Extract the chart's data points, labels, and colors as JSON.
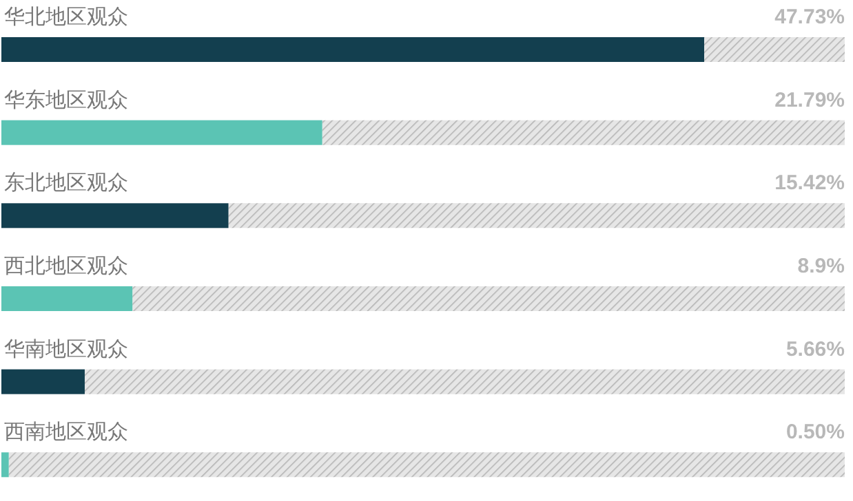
{
  "chart_data": {
    "type": "bar",
    "orientation": "horizontal",
    "categories": [
      "华北地区观众",
      "华东地区观众",
      "东北地区观众",
      "西北地区观众",
      "华南地区观众",
      "西南地区观众"
    ],
    "values": [
      47.73,
      21.79,
      15.42,
      8.9,
      5.66,
      0.5
    ],
    "value_labels": [
      "47.73%",
      "21.79%",
      "15.42%",
      "8.9%",
      "5.66%",
      "0.50%"
    ],
    "colors": [
      "#133f4f",
      "#5bc4b4",
      "#133f4f",
      "#5bc4b4",
      "#133f4f",
      "#5bc4b4"
    ]
  }
}
